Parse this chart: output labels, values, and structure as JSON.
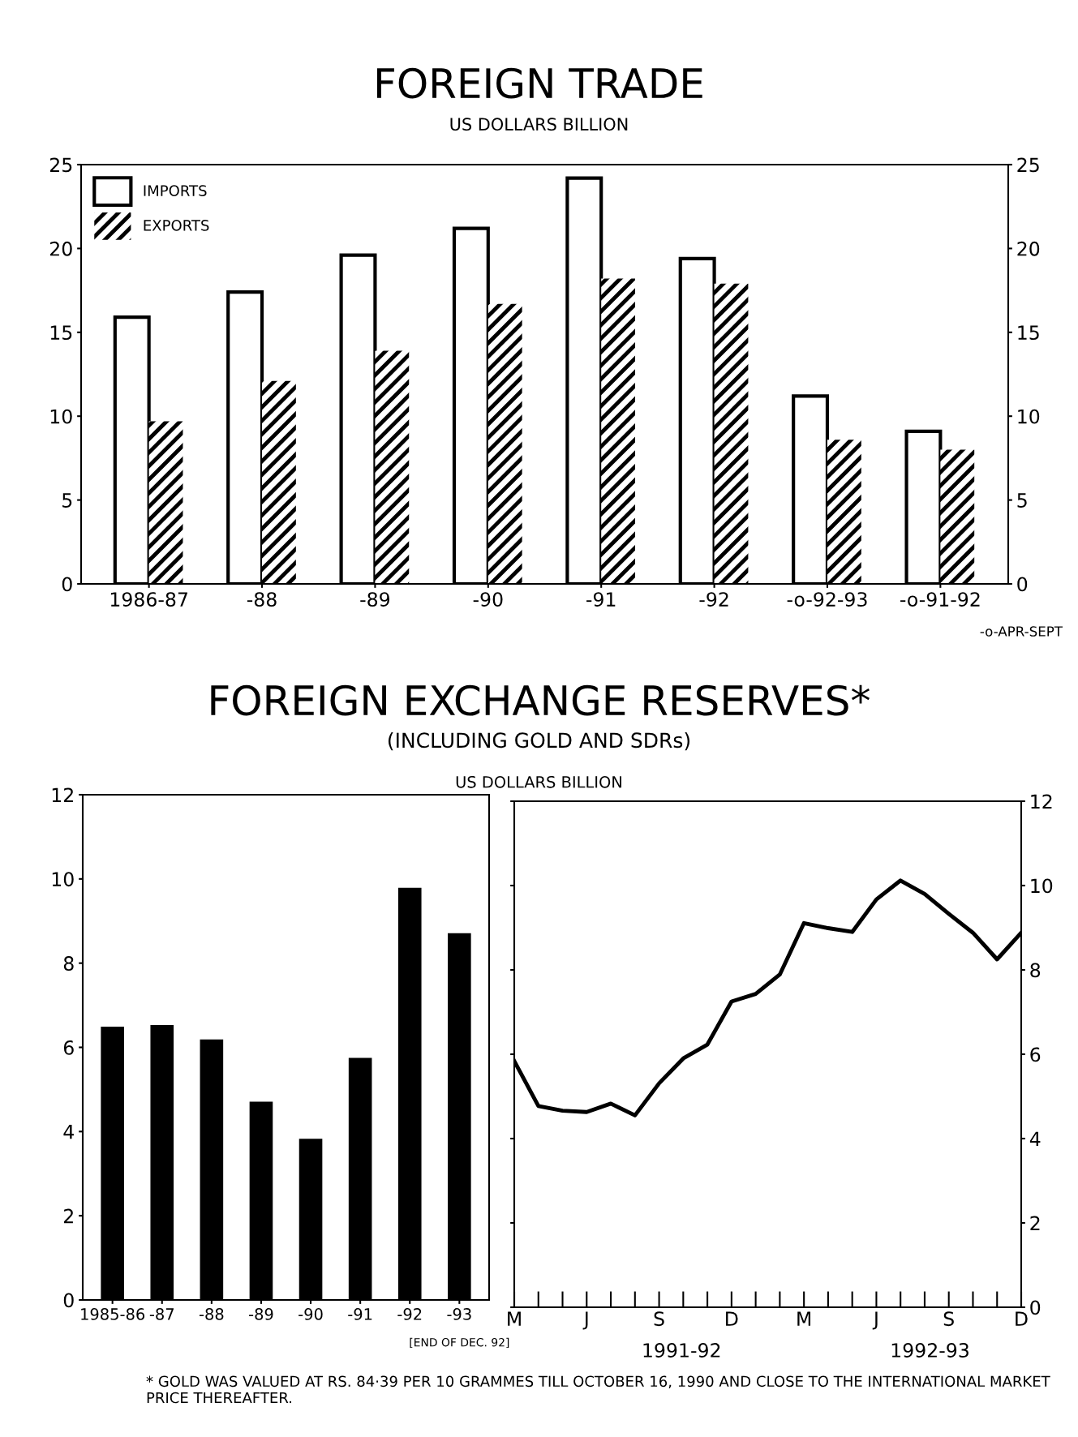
{
  "chart_data": [
    {
      "type": "bar",
      "title": "FOREIGN TRADE",
      "subtitle": "US DOLLARS BILLION",
      "categories": [
        "1986-87",
        "-88",
        "-89",
        "-90",
        "-91",
        "-92",
        "-o-92-93",
        "-o-91-92"
      ],
      "series": [
        {
          "name": "IMPORTS",
          "color": "#ffffff",
          "values": [
            15.9,
            17.4,
            19.6,
            21.2,
            24.2,
            19.4,
            11.2,
            9.1
          ]
        },
        {
          "name": "EXPORTS",
          "color": "#000000",
          "values": [
            9.7,
            12.1,
            13.9,
            16.7,
            18.2,
            17.9,
            8.6,
            8.0
          ]
        }
      ],
      "ylim": [
        0,
        25
      ],
      "yticks": [
        0,
        5,
        10,
        15,
        20,
        25
      ],
      "y2lim": [
        0,
        25
      ],
      "y2ticks": [
        0,
        5,
        10,
        15,
        20,
        25
      ],
      "grid": false,
      "legend": "top left",
      "annotations": [
        "-o-APR-SEPT"
      ]
    },
    {
      "type": "bar",
      "title": "FOREIGN EXCHANGE RESERVES*",
      "subtitle": "(INCLUDING GOLD AND SDRs)",
      "ylabel": "US DOLLARS BILLION",
      "categories": [
        "1985-86",
        "-87",
        "-88",
        "-89",
        "-90",
        "-91",
        "-92",
        "-93"
      ],
      "series": [
        {
          "color": "#000000",
          "values": [
            6.45,
            6.49,
            6.15,
            4.67,
            3.79,
            5.71,
            9.75,
            8.67
          ]
        }
      ],
      "ylim": [
        0,
        12
      ],
      "yticks": [
        0,
        2,
        4,
        6,
        8,
        10,
        12
      ],
      "grid": false,
      "annotations": [
        "[END OF DEC. 92]",
        "* GOLD WAS VALUED AT RS. 84·39 PER 10 GRAMMES TILL OCTOBER 16, 1990 AND CLOSE TO THE INTERNATIONAL MARKET PRICE THEREAFTER."
      ]
    },
    {
      "type": "line",
      "categories": [
        "M",
        null,
        null,
        "J",
        null,
        null,
        "S",
        null,
        null,
        "D",
        null,
        null,
        "M",
        null,
        null,
        "J",
        null,
        null,
        "S",
        null,
        null,
        "D"
      ],
      "series": [
        {
          "color": "#000000",
          "axis": "y2",
          "values": [
            5.84,
            4.77,
            4.66,
            4.63,
            4.83,
            4.55,
            5.31,
            5.9,
            6.23,
            7.25,
            7.43,
            7.89,
            9.11,
            8.99,
            8.9,
            9.67,
            10.12,
            9.8,
            9.33,
            8.88,
            8.25,
            8.88
          ]
        }
      ],
      "tick_labels": "y2",
      "y2lim": [
        0,
        12
      ],
      "y2ticks": [
        0,
        2,
        4,
        6,
        8,
        10,
        12
      ],
      "grid": false,
      "marker": "none",
      "line_style": "solid",
      "annotations": [
        "1991-92",
        "1992-93"
      ]
    }
  ]
}
